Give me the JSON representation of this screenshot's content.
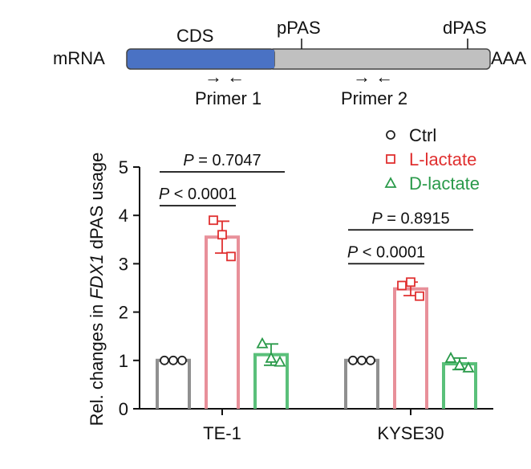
{
  "diagram": {
    "mrna_label": "mRNA",
    "cds_label": "CDS",
    "ppas_label": "pPAS",
    "dpas_label": "dPAS",
    "tail_label": "AAA",
    "primer1_label": "Primer 1",
    "primer2_label": "Primer 2",
    "primer_arrows": "→ ←",
    "cds_color": "#4a72c4",
    "utr_color": "#c0c0c0"
  },
  "chart_data": {
    "type": "bar",
    "ylabel_prefix": "Rel. changes in ",
    "ylabel_gene": "FDX1",
    "ylabel_suffix": " dPAS usage",
    "ylim": [
      0,
      5
    ],
    "yticks": [
      0,
      1,
      2,
      3,
      4,
      5
    ],
    "categories": [
      "TE-1",
      "KYSE30"
    ],
    "series": [
      {
        "name": "Ctrl",
        "marker": "circle",
        "color": "#909090",
        "legend_text_color": "#111111",
        "values": [
          1.0,
          1.0
        ],
        "errors": [
          0.0,
          0.0
        ],
        "points": [
          [
            1.0,
            1.0,
            1.0
          ],
          [
            1.0,
            1.0,
            1.0
          ]
        ]
      },
      {
        "name": "L-lactate",
        "marker": "square",
        "color": "#e8909a",
        "marker_color": "#e03030",
        "legend_text_color": "#e03030",
        "values": [
          3.55,
          2.48
        ],
        "errors": [
          0.33,
          0.14
        ],
        "points": [
          [
            3.9,
            3.6,
            3.15
          ],
          [
            2.55,
            2.62,
            2.33
          ]
        ]
      },
      {
        "name": "D-lactate",
        "marker": "triangle",
        "color": "#5ac07a",
        "marker_color": "#2a9a4a",
        "legend_text_color": "#2a9a4a",
        "values": [
          1.12,
          0.93
        ],
        "errors": [
          0.22,
          0.12
        ],
        "points": [
          [
            1.35,
            1.05,
            0.97
          ],
          [
            1.05,
            0.9,
            0.85
          ]
        ]
      }
    ],
    "annotations": [
      {
        "group": 0,
        "from": 0,
        "to": 2,
        "y": 4.9,
        "p_symbol": "P",
        "rest": " = 0.7047"
      },
      {
        "group": 0,
        "from": 0,
        "to": 1,
        "y": 4.2,
        "p_symbol": "P",
        "rest": " < 0.0001"
      },
      {
        "group": 1,
        "from": 0,
        "to": 2,
        "y": 3.7,
        "p_symbol": "P",
        "rest": " = 0.8915"
      },
      {
        "group": 1,
        "from": 0,
        "to": 1,
        "y": 3.0,
        "p_symbol": "P",
        "rest": " < 0.0001"
      }
    ],
    "legend_position": "top-right"
  }
}
